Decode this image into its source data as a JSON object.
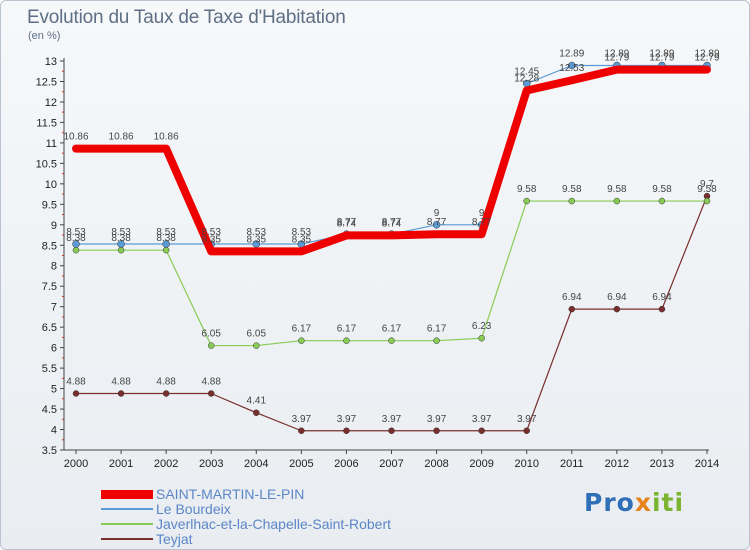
{
  "title": "Evolution du Taux de Taxe d'Habitation",
  "unit": "(en %)",
  "logo": {
    "part1": "Pro",
    "part2": "x",
    "part3": "iti",
    "colors": [
      "#2f6fb7",
      "#e8831a",
      "#7ab431"
    ]
  },
  "chart_data": {
    "type": "line",
    "title": "Evolution du Taux de Taxe d'Habitation",
    "ylabel": "(en %)",
    "xlabel": "",
    "ylim": [
      3.5,
      13
    ],
    "yticks": [
      "3.5",
      "4",
      "4.5",
      "5",
      "5.5",
      "6",
      "6.5",
      "7",
      "7.5",
      "8",
      "8.5",
      "9",
      "9.5",
      "10",
      "10.5",
      "11",
      "11.5",
      "12",
      "12.5",
      "13"
    ],
    "x": [
      "2000",
      "2001",
      "2002",
      "2003",
      "2004",
      "2005",
      "2006",
      "2007",
      "2008",
      "2009",
      "2010",
      "2011",
      "2012",
      "2013",
      "2014"
    ],
    "legend_position": "bottom-left",
    "grid": false,
    "series": [
      {
        "name": "SAINT-MARTIN-LE-PIN",
        "color": "#ee0000",
        "values": [
          10.86,
          10.86,
          10.86,
          8.35,
          8.35,
          8.35,
          8.74,
          8.74,
          8.77,
          8.77,
          12.28,
          12.53,
          12.79,
          12.79,
          12.79
        ],
        "labels": [
          "10.86",
          "10.86",
          "10.86",
          "8.35",
          "8.35",
          "8.35",
          "8.74",
          "8.74",
          "8.77",
          "8.77",
          "12.28",
          "12.53",
          "12.79",
          "12.79",
          "12.79"
        ]
      },
      {
        "name": "Le Bourdeix",
        "color": "#5a9bd5",
        "values": [
          8.53,
          8.53,
          8.53,
          8.53,
          8.53,
          8.53,
          8.77,
          8.77,
          9,
          9,
          12.45,
          12.89,
          12.89,
          12.89,
          12.89
        ],
        "labels": [
          "8.53",
          "8.53",
          "8.53",
          "8.53",
          "8.53",
          "8.53",
          "8.77",
          "8.77",
          "9",
          "9",
          "12.45",
          "12.89",
          "12.89",
          "12.89",
          "12.89"
        ]
      },
      {
        "name": "Javerlhac-et-la-Chapelle-Saint-Robert",
        "color": "#88cc55",
        "values": [
          8.38,
          8.38,
          8.38,
          6.05,
          6.05,
          6.17,
          6.17,
          6.17,
          6.17,
          6.23,
          9.58,
          9.58,
          9.58,
          9.58,
          9.58
        ],
        "labels": [
          "8.38",
          "8.38",
          "8.38",
          "6.05",
          "6.05",
          "6.17",
          "6.17",
          "6.17",
          "6.17",
          "6.23",
          "9.58",
          "9.58",
          "9.58",
          "9.58",
          "9.58"
        ]
      },
      {
        "name": "Teyjat",
        "color": "#7a2e2e",
        "values": [
          4.88,
          4.88,
          4.88,
          4.88,
          4.41,
          3.97,
          3.97,
          3.97,
          3.97,
          3.97,
          3.97,
          6.94,
          6.94,
          6.94,
          9.7
        ],
        "labels": [
          "4.88",
          "4.88",
          "4.88",
          "4.88",
          "4.41",
          "3.97",
          "3.97",
          "3.97",
          "3.97",
          "3.97",
          "3.97",
          "6.94",
          "6.94",
          "6.94",
          "9.7"
        ]
      }
    ]
  }
}
